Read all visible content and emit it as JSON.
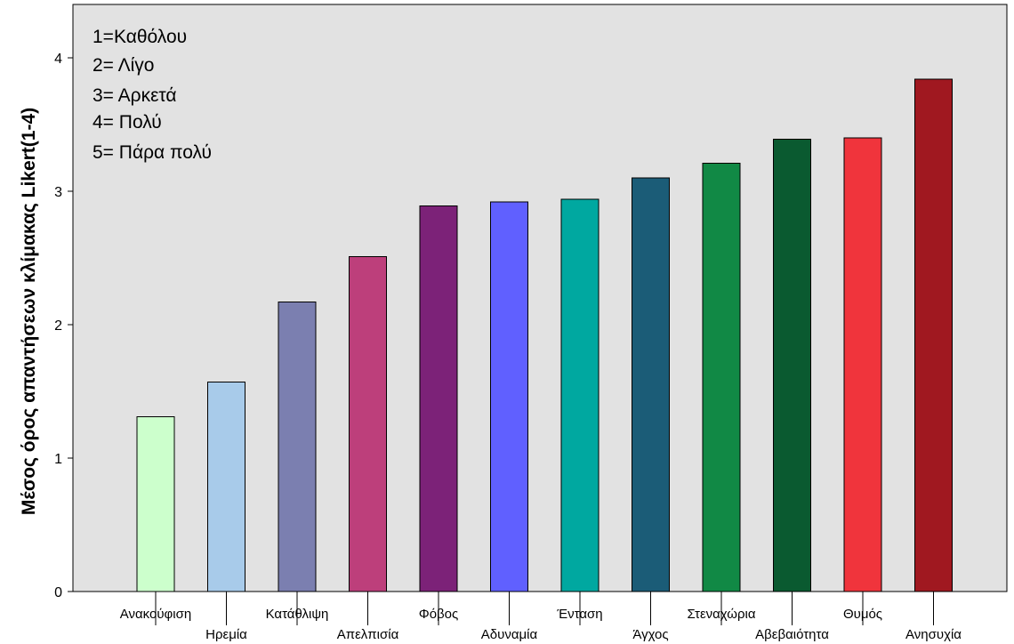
{
  "chart_data": {
    "type": "bar",
    "title": "",
    "xlabel": "",
    "ylabel": "Μέσος όρος απαντήσεων κλίμακας Likert(1-4)",
    "ylim": [
      0,
      4.4
    ],
    "yticks": [
      0,
      1,
      2,
      3,
      4
    ],
    "grid": false,
    "categories": [
      "Ανακούφιση",
      "Ηρεμία",
      "Κατάθλιψη",
      "Απελπισία",
      "Φόβος",
      "Αδυναμία",
      "Ένταση",
      "Άγχος",
      "Στεναχώρια",
      "Αβεβαιότητα",
      "Θυμός",
      "Ανησυχία"
    ],
    "values": [
      1.31,
      1.57,
      2.17,
      2.51,
      2.89,
      2.92,
      2.94,
      3.1,
      3.21,
      3.39,
      3.4,
      3.84
    ],
    "colors": [
      "#ccffcc",
      "#a8cbea",
      "#7b7fb0",
      "#bd3f7b",
      "#7c2278",
      "#6060ff",
      "#00a8a0",
      "#1b5c77",
      "#118945",
      "#0a5a30",
      "#f0343c",
      "#a01820"
    ],
    "legend_position": "top-left",
    "legend": [
      "1=Καθόλου",
      "2= Λίγο",
      "3= Αρκετά",
      "4= Πολύ",
      "5= Πάρα πολύ"
    ]
  }
}
